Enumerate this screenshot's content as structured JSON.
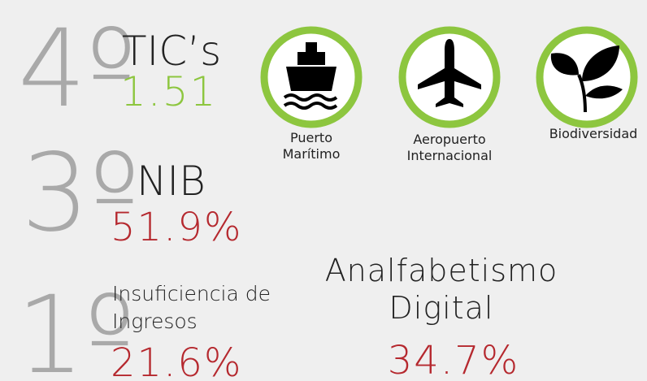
{
  "rankings": [
    {
      "rank": "4º",
      "label": "TIC’s",
      "value": "1.51"
    },
    {
      "rank": "3º",
      "label": "NIB",
      "value": "51.9%"
    },
    {
      "rank": "1º",
      "label_lines": [
        "Insuficiencia de",
        "Ingresos"
      ],
      "value": "21.6%"
    }
  ],
  "icons": [
    {
      "label_lines": [
        "Puerto",
        "Marítimo"
      ]
    },
    {
      "label_lines": [
        "Aeropuerto",
        "Internacional"
      ]
    },
    {
      "label_lines": [
        "Biodiversidad"
      ]
    }
  ],
  "highlight": {
    "label_lines": [
      "Analfabetismo",
      "Digital"
    ],
    "value": "34.7%"
  }
}
